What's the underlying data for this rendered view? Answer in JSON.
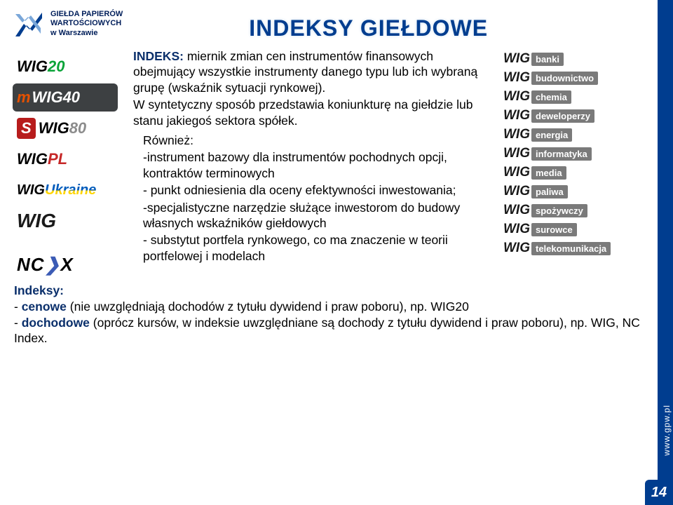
{
  "logo_text_lines": [
    "GIEŁDA PAPIERÓW",
    "WARTOŚCIOWYCH",
    "w Warszawie"
  ],
  "page_title": "INDEKSY GIEŁDOWE",
  "left_indices": {
    "wig20_pre": "WIG",
    "wig20_suf": "20",
    "mwig40_pre": "m",
    "mwig40_mid": "WIG",
    "mwig40_suf": "40",
    "swig80_pre": "S",
    "swig80_mid": "WIG",
    "swig80_suf": "80",
    "wigpl_pre": "WIG",
    "wigpl_suf": "PL",
    "wigukr_pre": "WIG",
    "wigukr_suf": "Ukraine",
    "wig_big": "WIG",
    "ncx_a": "NC",
    "ncx_ch": "❯",
    "ncx_b": "X"
  },
  "mid": {
    "p1_term": "INDEKS:",
    "p1_rest": " miernik zmian cen instrumentów finansowych obejmujący wszystkie instrumenty danego typu lub ich wybraną grupę (wskaźnik sytuacji rynkowej).",
    "p2": "W syntetyczny sposób przedstawia koniunkturę na giełdzie lub stanu jakiegoś sektora spółek.",
    "p3": "Również:",
    "p4": "-instrument bazowy dla instrumentów pochodnych opcji, kontraktów terminowych",
    "p5": "- punkt odniesienia dla oceny efektywności inwestowania;",
    "p6": "-specjalistyczne narzędzie służące inwestorom do budowy własnych wskaźników giełdowych",
    "p7": "- substytut portfela rynkowego, co ma znaczenie w teorii portfelowej i modelach"
  },
  "sectors": [
    "banki",
    "budownictwo",
    "chemia",
    "deweloperzy",
    "energia",
    "informatyka",
    "media",
    "paliwa",
    "spożywczy",
    "surowce",
    "telekomunikacja"
  ],
  "wig_prefix": "WIG",
  "bottom": {
    "l1": "Indeksy:",
    "l2a": "- ",
    "l2term": "cenowe",
    "l2b": " (nie uwzględniają dochodów z tytułu dywidend i praw poboru), np. WIG20",
    "l3a": "- ",
    "l3term": "dochodowe",
    "l3b": " (oprócz kursów, w indeksie uwzględniane są dochody z tytułu dywidend i praw poboru), np. WIG, NC Index."
  },
  "side_url": "www.gpw.pl",
  "page_number": "14",
  "colors": {
    "brand": "#003d8f"
  }
}
